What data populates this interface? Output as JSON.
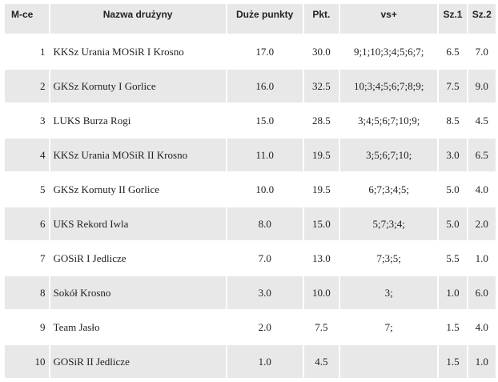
{
  "headers": {
    "place": "M-ce",
    "team": "Nazwa drużyny",
    "big_points": "Duże punkty",
    "points": "Pkt.",
    "vs": "vs+",
    "sz1": "Sz.1",
    "sz2": "Sz.2"
  },
  "rows": [
    {
      "place": "1",
      "team": "KKSz Urania MOSiR I Krosno",
      "big_points": "17.0",
      "points": "30.0",
      "vs": "9;1;10;3;4;5;6;7;",
      "sz1": "6.5",
      "sz2": "7.0"
    },
    {
      "place": "2",
      "team": "GKSz Kornuty I Gorlice",
      "big_points": "16.0",
      "points": "32.5",
      "vs": "10;3;4;5;6;7;8;9;",
      "sz1": "7.5",
      "sz2": "9.0"
    },
    {
      "place": "3",
      "team": "LUKS Burza Rogi",
      "big_points": "15.0",
      "points": "28.5",
      "vs": "3;4;5;6;7;10;9;",
      "sz1": "8.5",
      "sz2": "4.5"
    },
    {
      "place": "4",
      "team": "KKSz Urania MOSiR II Krosno",
      "big_points": "11.0",
      "points": "19.5",
      "vs": "3;5;6;7;10;",
      "sz1": "3.0",
      "sz2": "6.5"
    },
    {
      "place": "5",
      "team": "GKSz Kornuty II Gorlice",
      "big_points": "10.0",
      "points": "19.5",
      "vs": "6;7;3;4;5;",
      "sz1": "5.0",
      "sz2": "4.0"
    },
    {
      "place": "6",
      "team": "UKS Rekord Iwla",
      "big_points": "8.0",
      "points": "15.0",
      "vs": "5;7;3;4;",
      "sz1": "5.0",
      "sz2": "2.0"
    },
    {
      "place": "7",
      "team": "GOSiR I Jedlicze",
      "big_points": "7.0",
      "points": "13.0",
      "vs": "7;3;5;",
      "sz1": "5.5",
      "sz2": "1.0"
    },
    {
      "place": "8",
      "team": "Sokół Krosno",
      "big_points": "3.0",
      "points": "10.0",
      "vs": "3;",
      "sz1": "1.0",
      "sz2": "6.0"
    },
    {
      "place": "9",
      "team": "Team Jasło",
      "big_points": "2.0",
      "points": "7.5",
      "vs": "7;",
      "sz1": "1.5",
      "sz2": "4.0"
    },
    {
      "place": "10",
      "team": "GOSiR II Jedlicze",
      "big_points": "1.0",
      "points": "4.5",
      "vs": "",
      "sz1": "1.5",
      "sz2": "1.0"
    }
  ]
}
